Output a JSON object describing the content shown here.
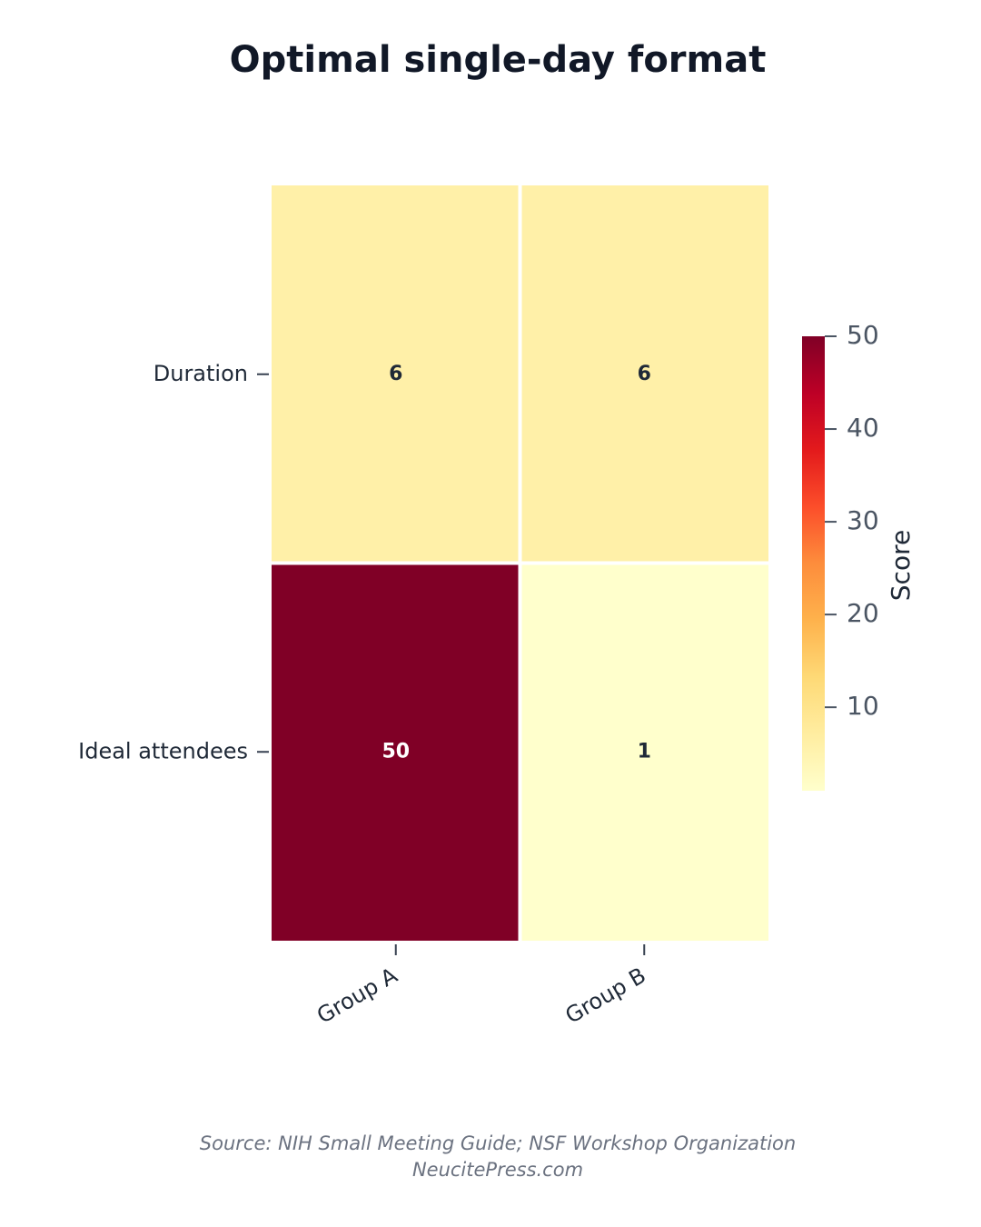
{
  "chart_data": {
    "type": "heatmap",
    "title": "Optimal single-day format",
    "x": [
      "Group A",
      "Group B"
    ],
    "y": [
      "Duration",
      "Ideal attendees"
    ],
    "values": [
      [
        6,
        6
      ],
      [
        50,
        1
      ]
    ],
    "colorbar": {
      "title": "Score",
      "range": [
        1,
        50
      ],
      "ticks": [
        10,
        20,
        30,
        40,
        50
      ]
    },
    "colorscale": [
      [
        0,
        "#ffffcc"
      ],
      [
        0.125,
        "#ffeda0"
      ],
      [
        0.25,
        "#fed976"
      ],
      [
        0.375,
        "#feb24c"
      ],
      [
        0.5,
        "#fd8d3c"
      ],
      [
        0.625,
        "#fc4e2a"
      ],
      [
        0.75,
        "#e31a1c"
      ],
      [
        0.875,
        "#bd0026"
      ],
      [
        1,
        "#800026"
      ]
    ],
    "source": "Source: NIH Small Meeting Guide; NSF Workshop Organization",
    "footer": "NeucitePress.com"
  }
}
